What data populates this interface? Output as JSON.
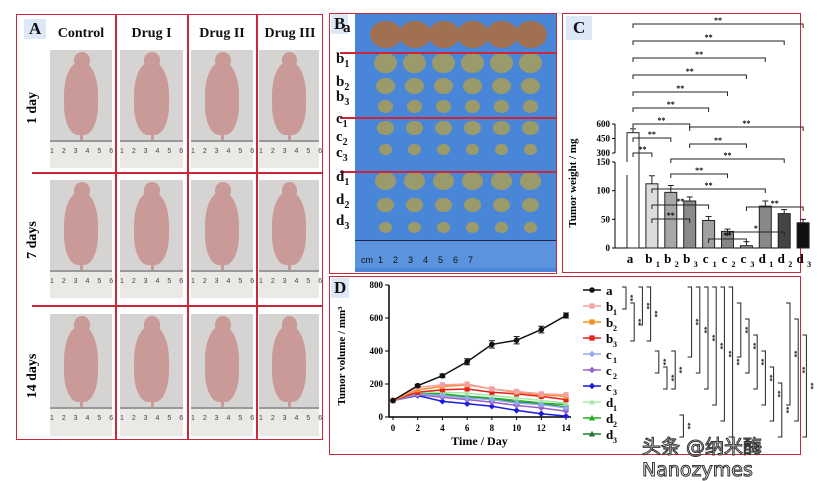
{
  "panelA": {
    "label": "A",
    "columns": [
      "Control",
      "Drug I",
      "Drug II",
      "Drug III"
    ],
    "rows": [
      "1 day",
      "7 days",
      "14 days"
    ],
    "ruler_text": "1 2 3 4 5 6"
  },
  "panelB": {
    "label": "B",
    "rows": [
      "a",
      "b1",
      "b2",
      "b3",
      "c1",
      "c2",
      "c3",
      "d1",
      "d2",
      "d3"
    ],
    "ruler_text": "cm  1    2    3    4    5    6    7",
    "background": "#3f7fd6"
  },
  "panelC": {
    "label": "C"
  },
  "panelD": {
    "label": "D"
  },
  "watermark": "头条 @纳米酶Nanozymes",
  "chart_data": [
    {
      "type": "bar",
      "panel": "C",
      "ylabel": "Tumor weight / mg",
      "categories": [
        "a",
        "b1",
        "b2",
        "b3",
        "c1",
        "c2",
        "c3",
        "d1",
        "d2",
        "d3"
      ],
      "values": [
        510,
        112,
        97,
        82,
        48,
        29,
        4,
        73,
        60,
        44
      ],
      "errors": [
        40,
        14,
        12,
        7,
        7,
        4,
        7,
        9,
        7,
        6
      ],
      "colors": [
        "#ffffff",
        "#dcdcdc",
        "#a8a8a8",
        "#8a8a8a",
        "#a0a0a0",
        "#858585",
        "#9a9a9a",
        "#888888",
        "#444444",
        "#111111"
      ],
      "yaxis_broken": true,
      "yticks_lower": [
        0,
        50,
        100,
        150
      ],
      "yticks_upper": [
        300,
        450,
        600
      ],
      "significance": [
        [
          "a",
          "d3",
          "**"
        ],
        [
          "a",
          "d2",
          "**"
        ],
        [
          "a",
          "d1",
          "**"
        ],
        [
          "a",
          "c3",
          "**"
        ],
        [
          "a",
          "c2",
          "**"
        ],
        [
          "a",
          "c1",
          "**"
        ],
        [
          "a",
          "b3",
          "**"
        ],
        [
          "a",
          "b2",
          "**"
        ],
        [
          "b3",
          "d3",
          "**"
        ],
        [
          "a",
          "b1",
          "**"
        ],
        [
          "b3",
          "c3",
          "**"
        ],
        [
          "b2",
          "d2",
          "**"
        ],
        [
          "b2",
          "c2",
          "**"
        ],
        [
          "b1",
          "d1",
          "**"
        ],
        [
          "b1",
          "c1",
          "**"
        ],
        [
          "b1",
          "b3",
          "**"
        ],
        [
          "c3",
          "d3",
          "**"
        ],
        [
          "c2",
          "d2",
          "*"
        ],
        [
          "c1",
          "c3",
          "**"
        ]
      ]
    },
    {
      "type": "line",
      "panel": "D",
      "xlabel": "Time / Day",
      "ylabel": "Tumor volume / mm³",
      "x": [
        0,
        2,
        4,
        6,
        8,
        10,
        12,
        14
      ],
      "xlim": [
        0,
        14
      ],
      "ylim": [
        0,
        800
      ],
      "yticks": [
        0,
        200,
        400,
        600,
        800
      ],
      "series": [
        {
          "name": "a",
          "color": "#111111",
          "marker": "circle",
          "values": [
            100,
            190,
            250,
            335,
            440,
            465,
            530,
            615
          ]
        },
        {
          "name": "b1",
          "color": "#f4a0a8",
          "marker": "square",
          "values": [
            100,
            180,
            195,
            200,
            170,
            155,
            140,
            135
          ]
        },
        {
          "name": "b2",
          "color": "#f39020",
          "marker": "square",
          "values": [
            100,
            165,
            185,
            195,
            170,
            150,
            135,
            125
          ]
        },
        {
          "name": "b3",
          "color": "#e8201c",
          "marker": "square",
          "values": [
            100,
            150,
            165,
            170,
            150,
            140,
            125,
            105
          ]
        },
        {
          "name": "c1",
          "color": "#90a8f0",
          "marker": "diamond",
          "values": [
            100,
            140,
            130,
            115,
            105,
            85,
            75,
            55
          ]
        },
        {
          "name": "c2",
          "color": "#9a60c8",
          "marker": "diamond",
          "values": [
            100,
            135,
            120,
            105,
            90,
            70,
            55,
            35
          ]
        },
        {
          "name": "c3",
          "color": "#1a1ae0",
          "marker": "diamond",
          "values": [
            100,
            130,
            95,
            80,
            65,
            40,
            20,
            5
          ]
        },
        {
          "name": "d1",
          "color": "#a8e8a8",
          "marker": "triangle",
          "values": [
            100,
            150,
            150,
            145,
            130,
            115,
            100,
            85
          ]
        },
        {
          "name": "d2",
          "color": "#20b020",
          "marker": "triangle",
          "values": [
            100,
            145,
            140,
            125,
            115,
            100,
            85,
            75
          ]
        },
        {
          "name": "d3",
          "color": "#207830",
          "marker": "triangle",
          "values": [
            100,
            150,
            135,
            120,
            110,
            90,
            80,
            60
          ]
        }
      ],
      "significance": [
        [
          "a",
          "b1",
          "**"
        ],
        [
          "b1",
          "b3",
          "**"
        ],
        [
          "a",
          "b2",
          "**"
        ],
        [
          "a",
          "b3",
          "**"
        ],
        [
          "c1",
          "c2",
          "**"
        ],
        [
          "c2",
          "c3",
          "**"
        ],
        [
          "c1",
          "c3",
          "**"
        ],
        [
          "d2",
          "d3",
          "**"
        ],
        [
          "a",
          "c1",
          "**"
        ],
        [
          "a",
          "c2",
          "**"
        ],
        [
          "a",
          "c3",
          "**"
        ],
        [
          "a",
          "d1",
          "**"
        ],
        [
          "a",
          "d2",
          "**"
        ],
        [
          "a",
          "d3",
          "**"
        ],
        [
          "b1",
          "c1",
          "**"
        ],
        [
          "b2",
          "c2",
          "**"
        ],
        [
          "b3",
          "c3",
          "**"
        ],
        [
          "c1",
          "d1",
          "**"
        ],
        [
          "c2",
          "d2",
          "**"
        ],
        [
          "c3",
          "d3",
          "**"
        ],
        [
          "b1",
          "d1",
          "**"
        ],
        [
          "b2",
          "d2",
          "**"
        ],
        [
          "b3",
          "d3",
          "**"
        ]
      ]
    }
  ]
}
